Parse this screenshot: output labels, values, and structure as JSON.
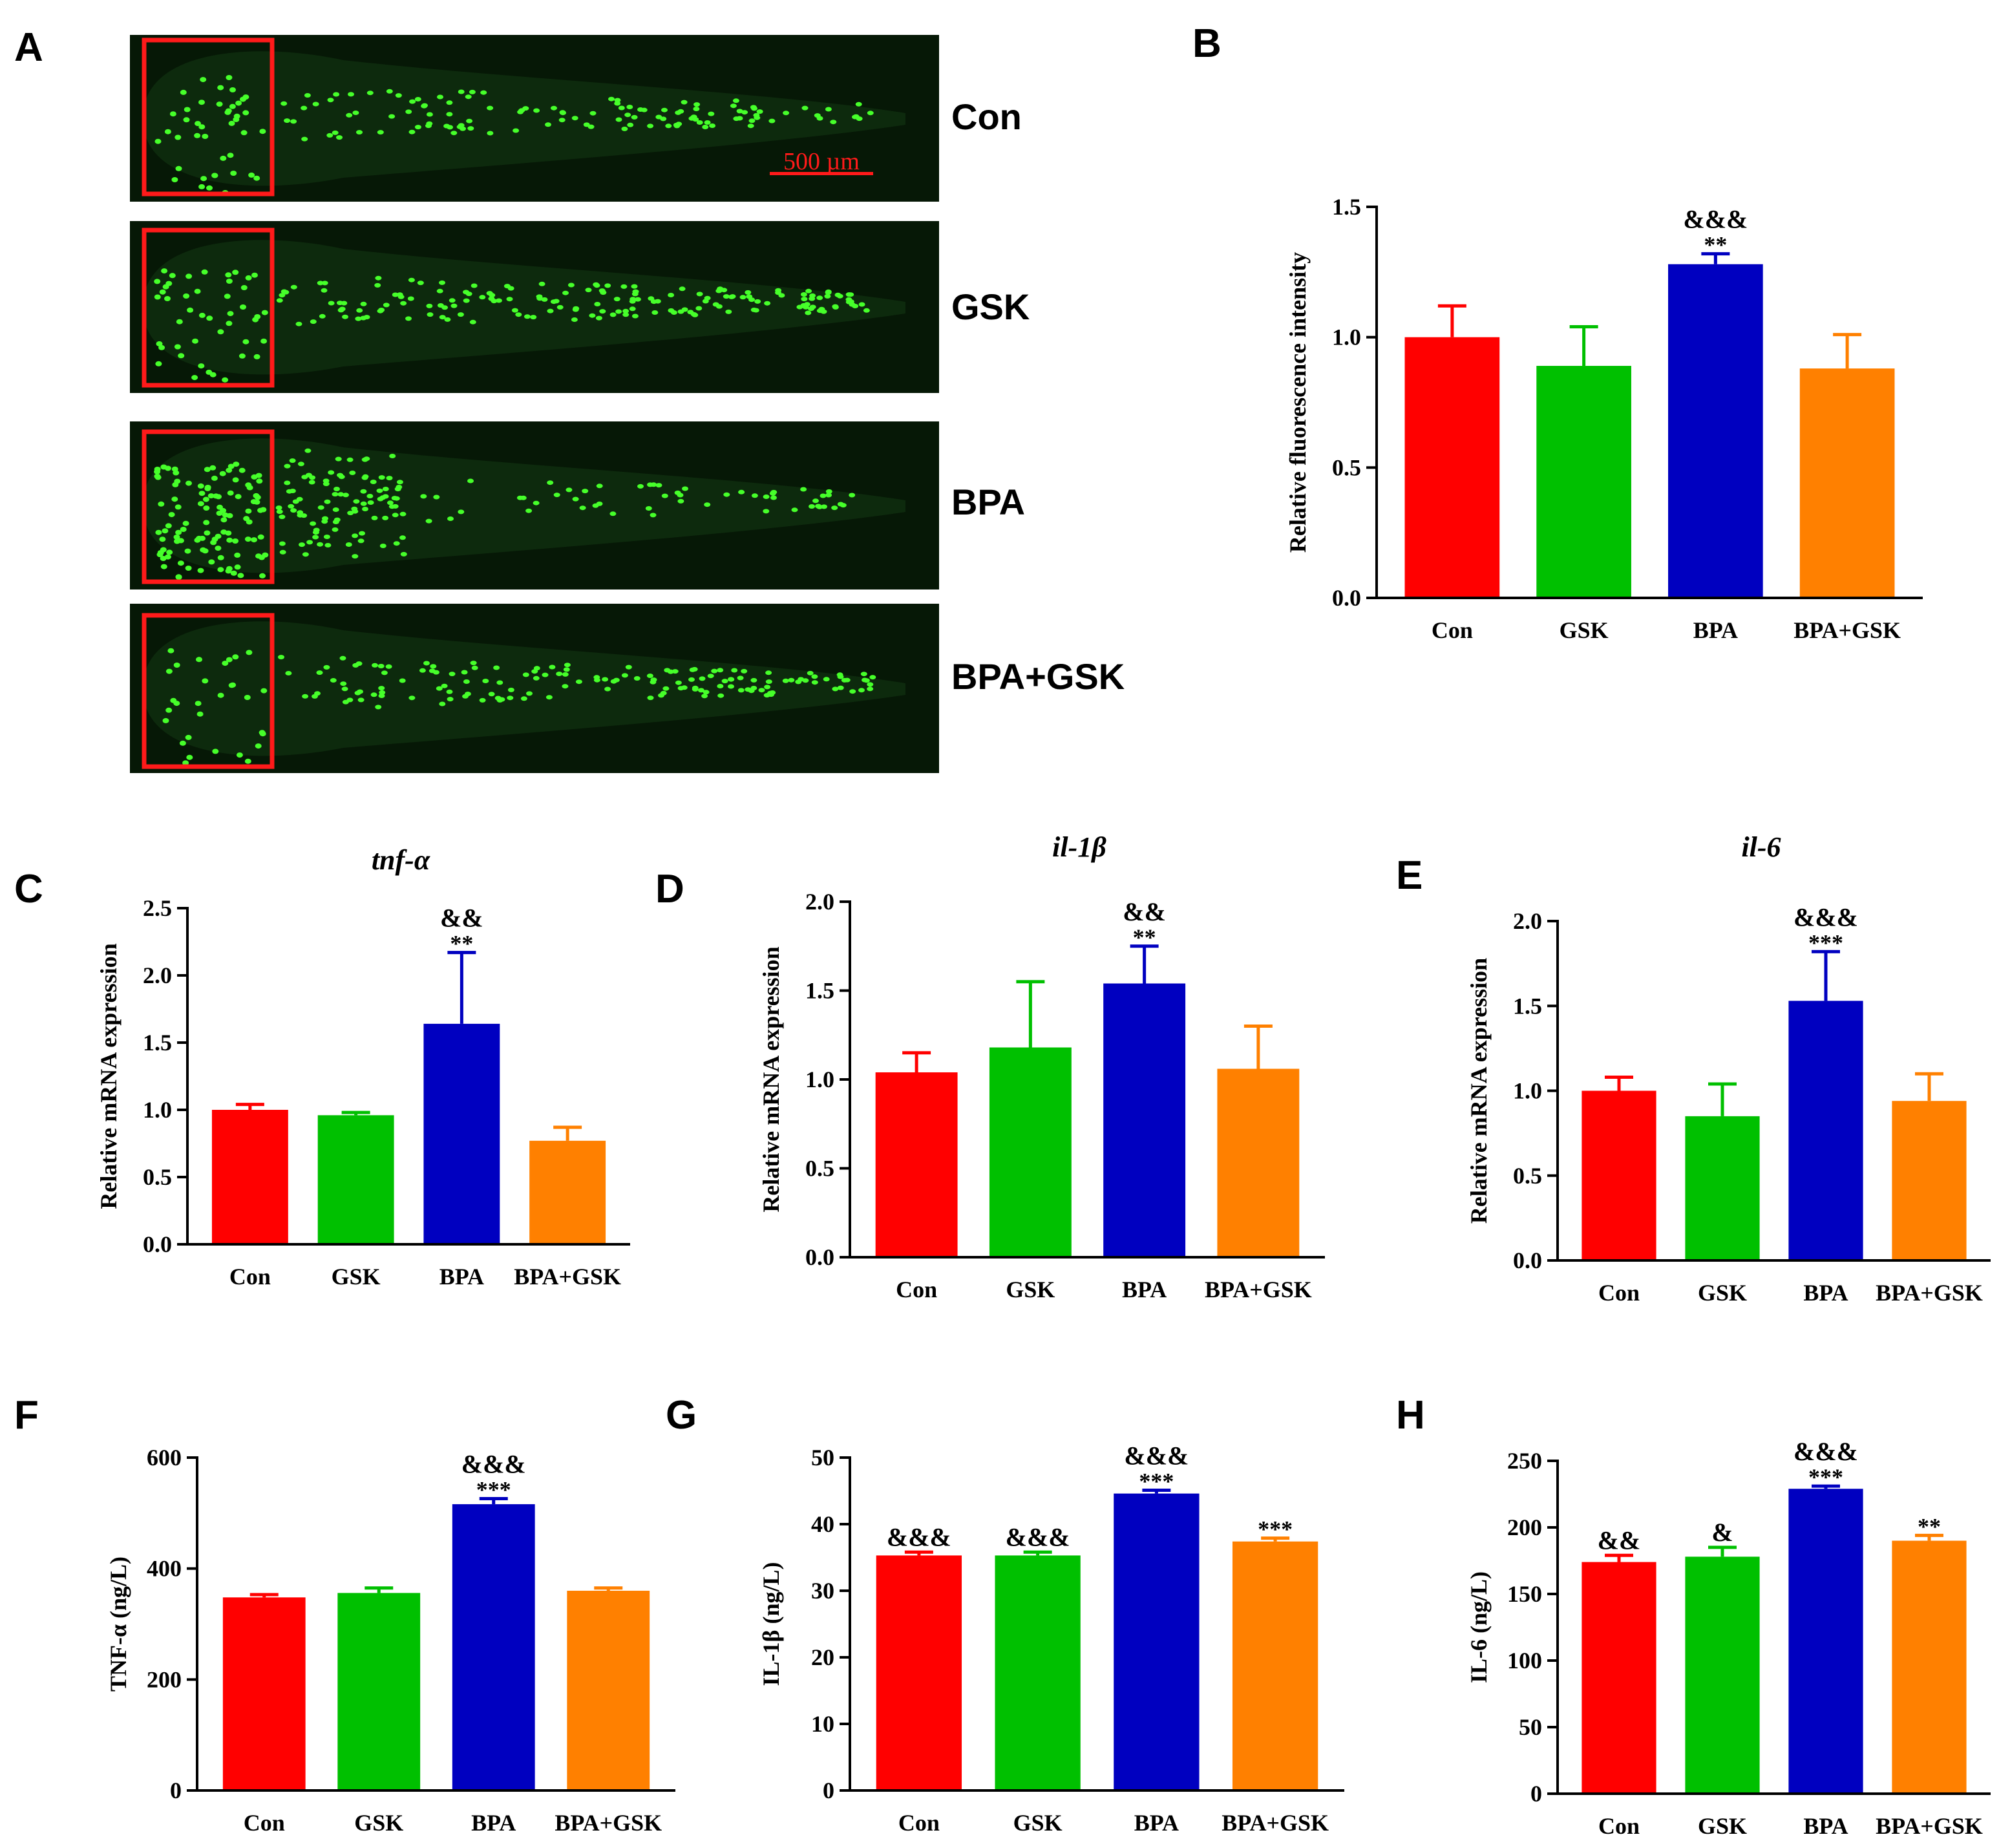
{
  "colors": {
    "Con": "#ff0000",
    "GSK": "#00c000",
    "BPA": "#0000c0",
    "BPA+GSK": "#ff8000",
    "roi_box": "#ff1a1a",
    "fluorescence": "#46ff2a",
    "image_background": "#061806"
  },
  "panel_A": {
    "letter": "A",
    "scale_bar": "500 µm",
    "images": [
      {
        "label": "Con",
        "cells_in_head": 42,
        "cells_in_trunk": 120
      },
      {
        "label": "GSK",
        "cells_in_head": 45,
        "cells_in_trunk": 170
      },
      {
        "label": "BPA",
        "cells_in_head": 110,
        "cells_in_trunk": 150
      },
      {
        "label": "BPA+GSK",
        "cells_in_head": 30,
        "cells_in_trunk": 150
      }
    ]
  },
  "chart_data": [
    {
      "id": "B",
      "type": "bar",
      "letter": "B",
      "title": "",
      "ylabel": "Relative fluorescence intensity",
      "ylim": [
        0,
        1.5
      ],
      "yticks": [
        0.0,
        0.5,
        1.0,
        1.5
      ],
      "tick_labels": [
        "0.0",
        "0.5",
        "1.0",
        "1.5"
      ],
      "categories": [
        "Con",
        "GSK",
        "BPA",
        "BPA+GSK"
      ],
      "values": [
        1.0,
        0.89,
        1.28,
        0.88
      ],
      "errors": [
        0.12,
        0.15,
        0.04,
        0.13
      ],
      "annotations": [
        [
          "",
          ""
        ],
        [
          "",
          ""
        ],
        [
          "**",
          "&&&"
        ],
        [
          "",
          ""
        ]
      ]
    },
    {
      "id": "C",
      "type": "bar",
      "letter": "C",
      "title": "tnf-α",
      "ylabel": "Relative mRNA expression",
      "ylim": [
        0,
        2.5
      ],
      "yticks": [
        0.0,
        0.5,
        1.0,
        1.5,
        2.0,
        2.5
      ],
      "tick_labels": [
        "0.0",
        "0.5",
        "1.0",
        "1.5",
        "2.0",
        "2.5"
      ],
      "categories": [
        "Con",
        "GSK",
        "BPA",
        "BPA+GSK"
      ],
      "values": [
        1.0,
        0.96,
        1.64,
        0.77
      ],
      "errors": [
        0.04,
        0.02,
        0.53,
        0.1
      ],
      "annotations": [
        [
          "",
          ""
        ],
        [
          "",
          ""
        ],
        [
          "**",
          "&&"
        ],
        [
          "",
          ""
        ]
      ]
    },
    {
      "id": "D",
      "type": "bar",
      "letter": "D",
      "title": "il-1β",
      "ylabel": "Relative mRNA expression",
      "ylim": [
        0,
        2.0
      ],
      "yticks": [
        0.0,
        0.5,
        1.0,
        1.5,
        2.0
      ],
      "tick_labels": [
        "0.0",
        "0.5",
        "1.0",
        "1.5",
        "2.0"
      ],
      "categories": [
        "Con",
        "GSK",
        "BPA",
        "BPA+GSK"
      ],
      "values": [
        1.04,
        1.18,
        1.54,
        1.06
      ],
      "errors": [
        0.11,
        0.37,
        0.21,
        0.24
      ],
      "annotations": [
        [
          "",
          ""
        ],
        [
          "",
          ""
        ],
        [
          "**",
          "&&"
        ],
        [
          "",
          ""
        ]
      ]
    },
    {
      "id": "E",
      "type": "bar",
      "letter": "E",
      "title": "il-6",
      "ylabel": "Relative mRNA expression",
      "ylim": [
        0,
        2.0
      ],
      "yticks": [
        0.0,
        0.5,
        1.0,
        1.5,
        2.0
      ],
      "tick_labels": [
        "0.0",
        "0.5",
        "1.0",
        "1.5",
        "2.0"
      ],
      "categories": [
        "Con",
        "GSK",
        "BPA",
        "BPA+GSK"
      ],
      "values": [
        1.0,
        0.85,
        1.53,
        0.94
      ],
      "errors": [
        0.08,
        0.19,
        0.29,
        0.16
      ],
      "annotations": [
        [
          "",
          ""
        ],
        [
          "",
          ""
        ],
        [
          "***",
          "&&&"
        ],
        [
          "",
          ""
        ]
      ]
    },
    {
      "id": "F",
      "type": "bar",
      "letter": "F",
      "title": "",
      "ylabel": "TNF-α (ng/L)",
      "ylim": [
        0,
        600
      ],
      "yticks": [
        0,
        200,
        400,
        600
      ],
      "tick_labels": [
        "0",
        "200",
        "400",
        "600"
      ],
      "categories": [
        "Con",
        "GSK",
        "BPA",
        "BPA+GSK"
      ],
      "values": [
        348,
        356,
        516,
        360
      ],
      "errors": [
        5,
        9,
        10,
        5
      ],
      "annotations": [
        [
          "",
          ""
        ],
        [
          "",
          ""
        ],
        [
          "***",
          "&&&"
        ],
        [
          "",
          ""
        ]
      ]
    },
    {
      "id": "G",
      "type": "bar",
      "letter": "G",
      "title": "",
      "ylabel": "IL-1β (ng/L)",
      "ylim": [
        0,
        50
      ],
      "yticks": [
        0,
        10,
        20,
        30,
        40,
        50
      ],
      "tick_labels": [
        "0",
        "10",
        "20",
        "30",
        "40",
        "50"
      ],
      "categories": [
        "Con",
        "GSK",
        "BPA",
        "BPA+GSK"
      ],
      "values": [
        35.3,
        35.3,
        44.6,
        37.4
      ],
      "errors": [
        0.5,
        0.5,
        0.5,
        0.5
      ],
      "annotations": [
        [
          "",
          "&&&"
        ],
        [
          "",
          "&&&"
        ],
        [
          "***",
          "&&&"
        ],
        [
          "***",
          ""
        ]
      ]
    },
    {
      "id": "H",
      "type": "bar",
      "letter": "H",
      "title": "",
      "ylabel": "IL-6 (ng/L)",
      "ylim": [
        0,
        250
      ],
      "yticks": [
        0,
        50,
        100,
        150,
        200,
        250
      ],
      "tick_labels": [
        "0",
        "50",
        "100",
        "150",
        "200",
        "250"
      ],
      "categories": [
        "Con",
        "GSK",
        "BPA",
        "BPA+GSK"
      ],
      "values": [
        174,
        178,
        229,
        190
      ],
      "errors": [
        5,
        7,
        2,
        4
      ],
      "annotations": [
        [
          "",
          "&&"
        ],
        [
          "",
          "&"
        ],
        [
          "***",
          "&&&"
        ],
        [
          "**",
          ""
        ]
      ]
    }
  ]
}
